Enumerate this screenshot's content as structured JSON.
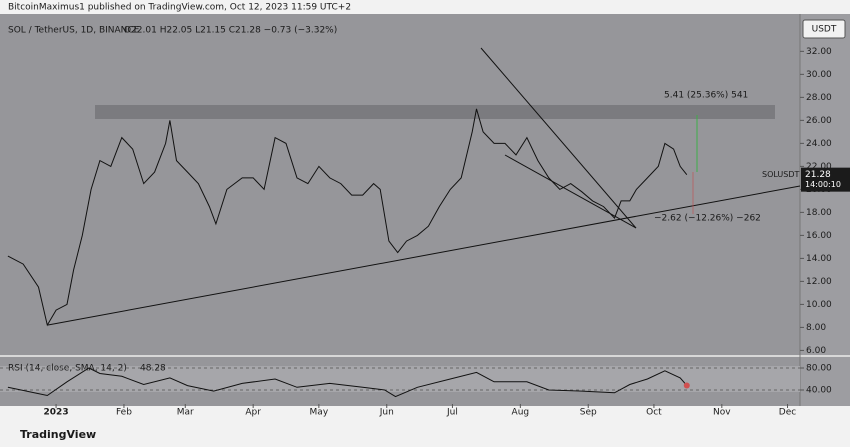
{
  "header": {
    "publisher": "BitcoinMaximus1 published on TradingView.com, Oct 12, 2023 11:59 UTC+2",
    "ohlc": "O22.01 H22.05 L21.15 C21.28 −0.73 (−3.32%)",
    "currency": "USDT",
    "symbol": "SOLUSDT",
    "countdown": "14:00:10",
    "brand": "TradingView"
  },
  "annotations": {
    "up_move": "5.41 (25.36%) 541",
    "down_move": "−2.62 (−12.26%) −262"
  },
  "chart_data": [
    {
      "type": "line",
      "title": "SOL / TetherUS, 1D, BINANCE",
      "color": "#111111",
      "xlim": [
        -25.6,
        339.7
      ],
      "ylim": [
        5.6,
        34.9
      ],
      "xticks": [
        {
          "value": 0,
          "label": "2023"
        },
        {
          "value": 31,
          "label": "Feb"
        },
        {
          "value": 59,
          "label": "Mar"
        },
        {
          "value": 90,
          "label": "Apr"
        },
        {
          "value": 120,
          "label": "May"
        },
        {
          "value": 151,
          "label": "Jun"
        },
        {
          "value": 181,
          "label": "Jul"
        },
        {
          "value": 212,
          "label": "Aug"
        },
        {
          "value": 243,
          "label": "Sep"
        },
        {
          "value": 273,
          "label": "Oct"
        },
        {
          "value": 304,
          "label": "Nov"
        },
        {
          "value": 334,
          "label": "Dec"
        }
      ],
      "yticks": [
        {
          "value": 6,
          "label": "6.00"
        },
        {
          "value": 8,
          "label": "8.00"
        },
        {
          "value": 10,
          "label": "10.00"
        },
        {
          "value": 12,
          "label": "12.00"
        },
        {
          "value": 14,
          "label": "14.00"
        },
        {
          "value": 16,
          "label": "16.00"
        },
        {
          "value": 18,
          "label": "18.00"
        },
        {
          "value": 20,
          "label": "20.00"
        },
        {
          "value": 22,
          "label": "22.00"
        },
        {
          "value": 24,
          "label": "24.00"
        },
        {
          "value": 26,
          "label": "26.00"
        },
        {
          "value": 28,
          "label": "28.00"
        },
        {
          "value": 30,
          "label": "30.00"
        },
        {
          "value": 32,
          "label": "32.00"
        }
      ],
      "series": [
        {
          "name": "SOLUSDT",
          "x": [
            -22,
            -15,
            -8,
            -4,
            0,
            5,
            8,
            12,
            16,
            20,
            25,
            30,
            35,
            40,
            45,
            50,
            52,
            55,
            60,
            65,
            70,
            73,
            78,
            85,
            90,
            95,
            100,
            105,
            110,
            115,
            120,
            125,
            130,
            135,
            140,
            145,
            148,
            152,
            156,
            160,
            165,
            170,
            175,
            180,
            185,
            190,
            192,
            195,
            200,
            205,
            210,
            215,
            220,
            225,
            230,
            235,
            240,
            245,
            250,
            255,
            258,
            262,
            265,
            270,
            275,
            278,
            282,
            285,
            288
          ],
          "values": [
            14.2,
            13.5,
            11.5,
            8.2,
            9.5,
            10,
            13,
            16,
            20,
            22.5,
            22,
            24.5,
            23.5,
            20.5,
            21.5,
            24,
            26,
            22.5,
            21.5,
            20.5,
            18.5,
            17,
            20,
            21,
            21,
            20,
            24.5,
            24,
            21,
            20.5,
            22,
            21,
            20.5,
            19.5,
            19.5,
            20.5,
            20,
            15.5,
            14.5,
            15.5,
            16,
            16.8,
            18.5,
            20,
            21,
            25,
            27,
            25,
            24,
            24,
            23,
            24.5,
            22.5,
            21,
            20,
            20.5,
            19.8,
            19,
            18.5,
            17.5,
            19,
            19,
            20,
            21,
            22,
            24,
            23.5,
            22,
            21.28
          ]
        }
      ]
    },
    {
      "type": "line",
      "title": "RSI (14, close, SMA, 14, 2)",
      "color": "#111111",
      "xlim": [
        -25.6,
        339.7
      ],
      "ylim": [
        18.2,
        98.2
      ],
      "yticks": [
        {
          "value": 40,
          "label": "40.00"
        },
        {
          "value": 80,
          "label": "80.00"
        }
      ],
      "series": [
        {
          "name": "RSI",
          "x": [
            -22,
            -10,
            -4,
            5,
            15,
            20,
            30,
            40,
            52,
            60,
            72,
            85,
            100,
            110,
            125,
            140,
            150,
            155,
            165,
            180,
            192,
            200,
            215,
            225,
            240,
            255,
            262,
            270,
            278,
            285,
            288
          ],
          "values": [
            45,
            35,
            30,
            55,
            80,
            70,
            65,
            50,
            62,
            48,
            38,
            52,
            60,
            45,
            52,
            45,
            40,
            28,
            45,
            60,
            72,
            55,
            55,
            40,
            38,
            35,
            50,
            60,
            75,
            62,
            48.28
          ]
        }
      ]
    }
  ]
}
